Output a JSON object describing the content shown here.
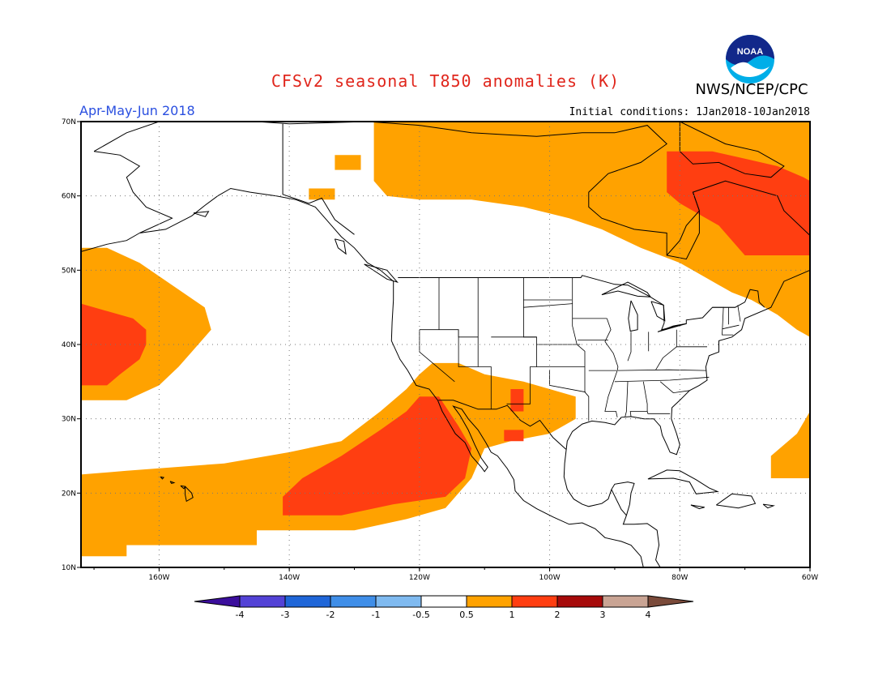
{
  "title": "CFSv2 seasonal T850 anomalies (K)",
  "agency": "NWS/NCEP/CPC",
  "logo_text": "NOAA",
  "season": "Apr-May-Jun 2018",
  "initial_conditions": "Initial conditions: 1Jan2018-10Jan2018",
  "map": {
    "projection": "equirectangular",
    "lon_range": [
      -172,
      -60
    ],
    "lat_range": [
      10,
      70
    ],
    "lat_ticks": [
      {
        "value": 10,
        "label": "10N"
      },
      {
        "value": 20,
        "label": "20N"
      },
      {
        "value": 30,
        "label": "30N"
      },
      {
        "value": 40,
        "label": "40N"
      },
      {
        "value": 50,
        "label": "50N"
      },
      {
        "value": 60,
        "label": "60N"
      },
      {
        "value": 70,
        "label": "70N"
      }
    ],
    "lon_ticks": [
      {
        "value": -160,
        "label": "160W"
      },
      {
        "value": -140,
        "label": "140W"
      },
      {
        "value": -120,
        "label": "120W"
      },
      {
        "value": -100,
        "label": "100W"
      },
      {
        "value": -80,
        "label": "80W"
      },
      {
        "value": -60,
        "label": "60W"
      }
    ],
    "grid": "dotted",
    "colors": {
      "orange_0_5_1": "#ffa200",
      "red_1_2": "#ff3e11",
      "land_outline": "#000000"
    }
  },
  "anomaly_regions": [
    {
      "level": "0.5-1",
      "color": "#ffa200",
      "polygon": [
        [
          -172,
          11.5
        ],
        [
          -165,
          11.5
        ],
        [
          -165,
          13
        ],
        [
          -145,
          13
        ],
        [
          -145,
          15
        ],
        [
          -130,
          15
        ],
        [
          -122,
          16.5
        ],
        [
          -116,
          18
        ],
        [
          -112,
          22
        ],
        [
          -110,
          26
        ],
        [
          -106,
          27
        ],
        [
          -100,
          28
        ],
        [
          -96,
          30
        ],
        [
          -96,
          33
        ],
        [
          -100,
          34
        ],
        [
          -104,
          35
        ],
        [
          -110,
          36
        ],
        [
          -114,
          37.5
        ],
        [
          -118,
          37.5
        ],
        [
          -120,
          36
        ],
        [
          -122,
          34
        ],
        [
          -126,
          31
        ],
        [
          -132,
          27
        ],
        [
          -140,
          25.5
        ],
        [
          -150,
          24
        ],
        [
          -165,
          23
        ],
        [
          -172,
          22.5
        ]
      ]
    },
    {
      "level": "0.5-1",
      "color": "#ffa200",
      "polygon": [
        [
          -172,
          32.5
        ],
        [
          -165,
          32.5
        ],
        [
          -160,
          34.5
        ],
        [
          -157,
          37
        ],
        [
          -155,
          39
        ],
        [
          -152,
          42
        ],
        [
          -153,
          45
        ],
        [
          -158,
          48
        ],
        [
          -163,
          51
        ],
        [
          -168,
          53
        ],
        [
          -172,
          53
        ]
      ]
    },
    {
      "level": "0.5-1",
      "color": "#ffa200",
      "polygon": [
        [
          -127,
          62
        ],
        [
          -127,
          70
        ],
        [
          -60,
          70
        ],
        [
          -60,
          41
        ],
        [
          -62,
          42
        ],
        [
          -65,
          44
        ],
        [
          -69,
          46
        ],
        [
          -72,
          47
        ],
        [
          -76,
          49
        ],
        [
          -80,
          51
        ],
        [
          -86,
          53
        ],
        [
          -92,
          55.5
        ],
        [
          -97,
          57
        ],
        [
          -104,
          58.5
        ],
        [
          -112,
          59.5
        ],
        [
          -120,
          59.5
        ],
        [
          -125,
          60
        ]
      ]
    },
    {
      "level": "0.5-1",
      "color": "#ffa200",
      "polygon": [
        [
          -137,
          61
        ],
        [
          -133,
          61
        ],
        [
          -133,
          59.5
        ],
        [
          -137,
          59.5
        ]
      ]
    },
    {
      "level": "0.5-1",
      "color": "#ffa200",
      "polygon": [
        [
          -133,
          65.5
        ],
        [
          -129,
          65.5
        ],
        [
          -129,
          63.5
        ],
        [
          -133,
          63.5
        ]
      ]
    },
    {
      "level": "0.5-1",
      "color": "#ffa200",
      "polygon": [
        [
          -60,
          22
        ],
        [
          -60,
          31
        ],
        [
          -62,
          28
        ],
        [
          -66,
          25
        ],
        [
          -66,
          22
        ]
      ]
    },
    {
      "level": "1-2",
      "color": "#ff3e11",
      "polygon": [
        [
          -141,
          17
        ],
        [
          -132,
          17
        ],
        [
          -124,
          18.5
        ],
        [
          -116,
          19.5
        ],
        [
          -113,
          22
        ],
        [
          -112,
          26
        ],
        [
          -114,
          29
        ],
        [
          -117,
          33
        ],
        [
          -120,
          33
        ],
        [
          -122,
          31
        ],
        [
          -126,
          28.5
        ],
        [
          -132,
          25
        ],
        [
          -138,
          22
        ],
        [
          -141,
          19.5
        ]
      ]
    },
    {
      "level": "1-2",
      "color": "#ff3e11",
      "polygon": [
        [
          -172,
          34.5
        ],
        [
          -168,
          34.5
        ],
        [
          -166,
          36
        ],
        [
          -163,
          38
        ],
        [
          -162,
          40
        ],
        [
          -162,
          42
        ],
        [
          -164,
          43.5
        ],
        [
          -168,
          44.5
        ],
        [
          -172,
          45.5
        ]
      ]
    },
    {
      "level": "1-2",
      "color": "#ff3e11",
      "polygon": [
        [
          -82,
          62
        ],
        [
          -82,
          66
        ],
        [
          -75,
          66
        ],
        [
          -70,
          65
        ],
        [
          -65,
          64
        ],
        [
          -61,
          62.5
        ],
        [
          -60,
          62
        ],
        [
          -60,
          52
        ],
        [
          -70,
          52
        ],
        [
          -74,
          56
        ],
        [
          -80,
          59
        ],
        [
          -82,
          60.5
        ]
      ]
    },
    {
      "level": "1-2",
      "color": "#ff3e11",
      "polygon": [
        [
          -107,
          27
        ],
        [
          -104,
          27
        ],
        [
          -104,
          28.5
        ],
        [
          -107,
          28.5
        ]
      ]
    },
    {
      "level": "1-2",
      "color": "#ff3e11",
      "polygon": [
        [
          -106,
          31
        ],
        [
          -104,
          31
        ],
        [
          -104,
          34
        ],
        [
          -106,
          34
        ]
      ]
    }
  ],
  "colorbar": {
    "labels": [
      "-4",
      "-3",
      "-2",
      "-1",
      "-0.5",
      "0.5",
      "1",
      "2",
      "3",
      "4"
    ],
    "colors": [
      "#3b0e9c",
      "#5342d6",
      "#1f66d8",
      "#3f8ee8",
      "#7fbaf0",
      "#ffffff",
      "#ffa200",
      "#ff3e11",
      "#a60a0a",
      "#c9a494",
      "#7a4a3a"
    ]
  }
}
